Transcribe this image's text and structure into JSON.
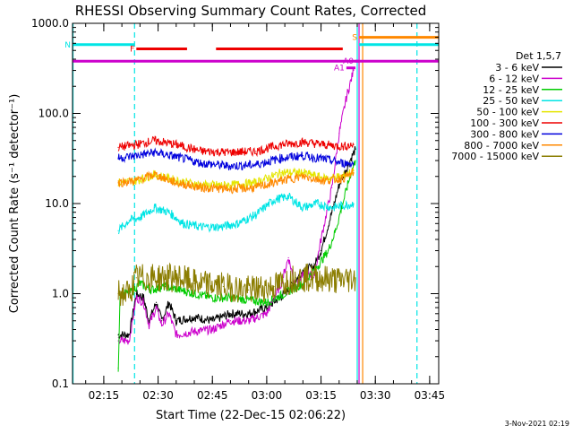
{
  "chart_data": {
    "type": "line",
    "title": "RHESSI Observing Summary Count Rates, Corrected",
    "xlabel": "Start Time (22-Dec-15 02:06:22)",
    "ylabel": "Corrected Count Rate (s⁻¹ detector⁻¹)",
    "yscale": "log",
    "ylim": [
      0.1,
      1000
    ],
    "xlim": [
      "02:06:22",
      "03:47:30"
    ],
    "x_ticks": [
      "02:15",
      "02:30",
      "02:45",
      "03:00",
      "03:15",
      "03:30",
      "03:45"
    ],
    "y_ticks": [
      "0.1",
      "1.0",
      "10.0",
      "100.0",
      "1000.0"
    ],
    "grid": false,
    "legend_title": "Det 1,5,7",
    "legend_position": "right",
    "footer_date": "3-Nov-2021 02:19",
    "series": [
      {
        "name": "3 - 6 keV",
        "color": "#000000",
        "points": [
          [
            "02:19:00",
            0.35
          ],
          [
            "02:22:00",
            0.35
          ],
          [
            "02:24:00",
            1.0
          ],
          [
            "02:26:00",
            0.9
          ],
          [
            "02:27:30",
            0.5
          ],
          [
            "02:29:30",
            0.8
          ],
          [
            "02:31:00",
            0.5
          ],
          [
            "02:33:00",
            0.8
          ],
          [
            "02:35:00",
            0.5
          ],
          [
            "02:40:00",
            0.55
          ],
          [
            "02:45:00",
            0.5
          ],
          [
            "02:50:00",
            0.6
          ],
          [
            "02:55:00",
            0.6
          ],
          [
            "03:00:00",
            0.7
          ],
          [
            "03:05:00",
            1.0
          ],
          [
            "03:08:00",
            1.4
          ],
          [
            "03:10:00",
            1.8
          ],
          [
            "03:13:00",
            2.0
          ],
          [
            "03:15:00",
            3.0
          ],
          [
            "03:18:00",
            8.0
          ],
          [
            "03:20:00",
            16.0
          ],
          [
            "03:23:00",
            30.0
          ],
          [
            "03:24:30",
            40.0
          ]
        ]
      },
      {
        "name": "6 - 12 keV",
        "color": "#cc00cc",
        "points": [
          [
            "02:19:00",
            0.3
          ],
          [
            "02:22:00",
            0.3
          ],
          [
            "02:24:00",
            0.9
          ],
          [
            "02:26:00",
            0.8
          ],
          [
            "02:27:30",
            0.45
          ],
          [
            "02:29:30",
            0.7
          ],
          [
            "02:31:00",
            0.45
          ],
          [
            "02:33:00",
            0.6
          ],
          [
            "02:35:00",
            0.35
          ],
          [
            "02:40:00",
            0.38
          ],
          [
            "02:45:00",
            0.4
          ],
          [
            "02:50:00",
            0.5
          ],
          [
            "02:55:00",
            0.5
          ],
          [
            "03:00:00",
            0.6
          ],
          [
            "03:04:00",
            1.3
          ],
          [
            "03:06:00",
            2.5
          ],
          [
            "03:08:00",
            1.2
          ],
          [
            "03:11:00",
            1.8
          ],
          [
            "03:13:00",
            1.5
          ],
          [
            "03:15:00",
            4.0
          ],
          [
            "03:18:00",
            15.0
          ],
          [
            "03:20:00",
            60.0
          ],
          [
            "03:22:00",
            150.0
          ],
          [
            "03:24:00",
            300.0
          ]
        ]
      },
      {
        "name": "12 - 25 keV",
        "color": "#00cc00",
        "points": [
          [
            "02:19:00",
            0.15
          ],
          [
            "02:19:30",
            1.0
          ],
          [
            "02:22:00",
            1.0
          ],
          [
            "02:25:00",
            1.3
          ],
          [
            "02:28:00",
            1.1
          ],
          [
            "02:32:00",
            1.2
          ],
          [
            "02:36:00",
            1.1
          ],
          [
            "02:40:00",
            1.0
          ],
          [
            "02:45:00",
            0.9
          ],
          [
            "02:50:00",
            0.9
          ],
          [
            "02:55:00",
            0.85
          ],
          [
            "03:00:00",
            0.8
          ],
          [
            "03:05:00",
            1.0
          ],
          [
            "03:10:00",
            1.3
          ],
          [
            "03:14:00",
            2.0
          ],
          [
            "03:17:00",
            3.0
          ],
          [
            "03:19:00",
            5.0
          ],
          [
            "03:21:00",
            10.0
          ],
          [
            "03:23:00",
            20.0
          ],
          [
            "03:24:30",
            30.0
          ]
        ]
      },
      {
        "name": "25 - 50 keV",
        "color": "#00e5e5",
        "points": [
          [
            "02:19:00",
            5.0
          ],
          [
            "02:22:00",
            6.5
          ],
          [
            "02:25:00",
            7.0
          ],
          [
            "02:29:00",
            9.0
          ],
          [
            "02:33:00",
            8.0
          ],
          [
            "02:37:00",
            6.0
          ],
          [
            "02:42:00",
            5.5
          ],
          [
            "02:47:00",
            5.5
          ],
          [
            "02:52:00",
            6.0
          ],
          [
            "02:57:00",
            7.5
          ],
          [
            "03:02:00",
            11.0
          ],
          [
            "03:06:00",
            12.0
          ],
          [
            "03:10:00",
            9.0
          ],
          [
            "03:14:00",
            10.0
          ],
          [
            "03:18:00",
            9.0
          ],
          [
            "03:21:00",
            9.5
          ],
          [
            "03:24:00",
            10.0
          ]
        ]
      },
      {
        "name": "50 - 100 keV",
        "color": "#e5e500",
        "points": [
          [
            "02:19:00",
            17.0
          ],
          [
            "02:24:00",
            18.0
          ],
          [
            "02:29:00",
            21.0
          ],
          [
            "02:35:00",
            18.0
          ],
          [
            "02:42:00",
            16.0
          ],
          [
            "02:50:00",
            16.0
          ],
          [
            "02:57:00",
            17.0
          ],
          [
            "03:04:00",
            22.0
          ],
          [
            "03:10:00",
            22.0
          ],
          [
            "03:16:00",
            19.0
          ],
          [
            "03:21:00",
            20.0
          ],
          [
            "03:24:00",
            23.0
          ]
        ]
      },
      {
        "name": "100 - 300 keV",
        "color": "#ee0000",
        "points": [
          [
            "02:19:00",
            42.0
          ],
          [
            "02:24:00",
            45.0
          ],
          [
            "02:29:00",
            50.0
          ],
          [
            "02:35:00",
            45.0
          ],
          [
            "02:42:00",
            38.0
          ],
          [
            "02:50:00",
            37.0
          ],
          [
            "02:57:00",
            38.0
          ],
          [
            "03:04:00",
            45.0
          ],
          [
            "03:10:00",
            48.0
          ],
          [
            "03:16:00",
            45.0
          ],
          [
            "03:21:00",
            43.0
          ],
          [
            "03:24:00",
            45.0
          ]
        ]
      },
      {
        "name": "300 - 800 keV",
        "color": "#0000dd",
        "points": [
          [
            "02:19:00",
            32.0
          ],
          [
            "02:24:00",
            34.0
          ],
          [
            "02:29:00",
            37.0
          ],
          [
            "02:35:00",
            33.0
          ],
          [
            "02:42:00",
            28.0
          ],
          [
            "02:50:00",
            26.0
          ],
          [
            "02:57:00",
            27.0
          ],
          [
            "03:04:00",
            32.0
          ],
          [
            "03:10:00",
            34.0
          ],
          [
            "03:16:00",
            31.0
          ],
          [
            "03:21:00",
            28.0
          ],
          [
            "03:24:00",
            28.0
          ]
        ]
      },
      {
        "name": "800 - 7000 keV",
        "color": "#ff8800",
        "points": [
          [
            "02:19:00",
            17.0
          ],
          [
            "02:24:00",
            18.0
          ],
          [
            "02:29:00",
            21.0
          ],
          [
            "02:35:00",
            17.0
          ],
          [
            "02:42:00",
            15.0
          ],
          [
            "02:50:00",
            14.5
          ],
          [
            "02:57:00",
            15.0
          ],
          [
            "03:04:00",
            18.0
          ],
          [
            "03:10:00",
            20.0
          ],
          [
            "03:16:00",
            18.0
          ],
          [
            "03:21:00",
            19.0
          ],
          [
            "03:24:00",
            22.0
          ]
        ]
      },
      {
        "name": "7000 - 15000 keV",
        "color": "#8b7d00",
        "points": [
          [
            "02:19:00",
            1.0
          ],
          [
            "02:22:00",
            1.0
          ],
          [
            "02:24:00",
            1.5
          ],
          [
            "02:30:00",
            1.5
          ],
          [
            "02:36:00",
            1.5
          ],
          [
            "02:40:00",
            1.3
          ],
          [
            "02:48:00",
            1.2
          ],
          [
            "02:55:00",
            1.1
          ],
          [
            "03:02:00",
            1.2
          ],
          [
            "03:08:00",
            1.5
          ],
          [
            "03:14:00",
            1.5
          ],
          [
            "03:20:00",
            1.4
          ],
          [
            "03:24:30",
            1.5
          ]
        ]
      }
    ],
    "annotations": [
      {
        "label": "N",
        "color": "#00e5e5",
        "start": "02:06:22",
        "end": "02:23:30",
        "y": 580
      },
      {
        "label": "F",
        "color": "#ee0000",
        "start": "02:24:00",
        "end": "02:38:00",
        "y": 520
      },
      {
        "label": "",
        "color": "#ee0000",
        "start": "02:46:00",
        "end": "03:21:00",
        "y": 520
      },
      {
        "label": "",
        "color": "#cc00cc",
        "start": "02:06:22",
        "end": "03:47:30",
        "y": 380
      },
      {
        "label": "A1",
        "color": "#cc00cc",
        "start": "03:22:00",
        "end": "03:24:30",
        "y": 320
      },
      {
        "label": "A0",
        "color": "#cc00cc",
        "start": "03:24:30",
        "end": "03:25:30",
        "y": 380
      },
      {
        "label": "S",
        "color": "#ff8800",
        "start": "03:25:30",
        "end": "03:47:30",
        "y": 700
      },
      {
        "label": "",
        "color": "#00e5e5",
        "start": "03:25:30",
        "end": "03:47:30",
        "y": 580
      }
    ],
    "vertical_lines": [
      {
        "time": "02:06:30",
        "color": "#00e5e5",
        "style": "solid"
      },
      {
        "time": "02:23:30",
        "color": "#00e5e5",
        "style": "dashed"
      },
      {
        "time": "03:25:00",
        "color": "#00e5e5",
        "style": "solid"
      },
      {
        "time": "03:25:30",
        "color": "#cc00cc",
        "style": "solid"
      },
      {
        "time": "03:26:30",
        "color": "#ff8800",
        "style": "solid"
      },
      {
        "time": "03:41:30",
        "color": "#00e5e5",
        "style": "dashed"
      }
    ]
  }
}
